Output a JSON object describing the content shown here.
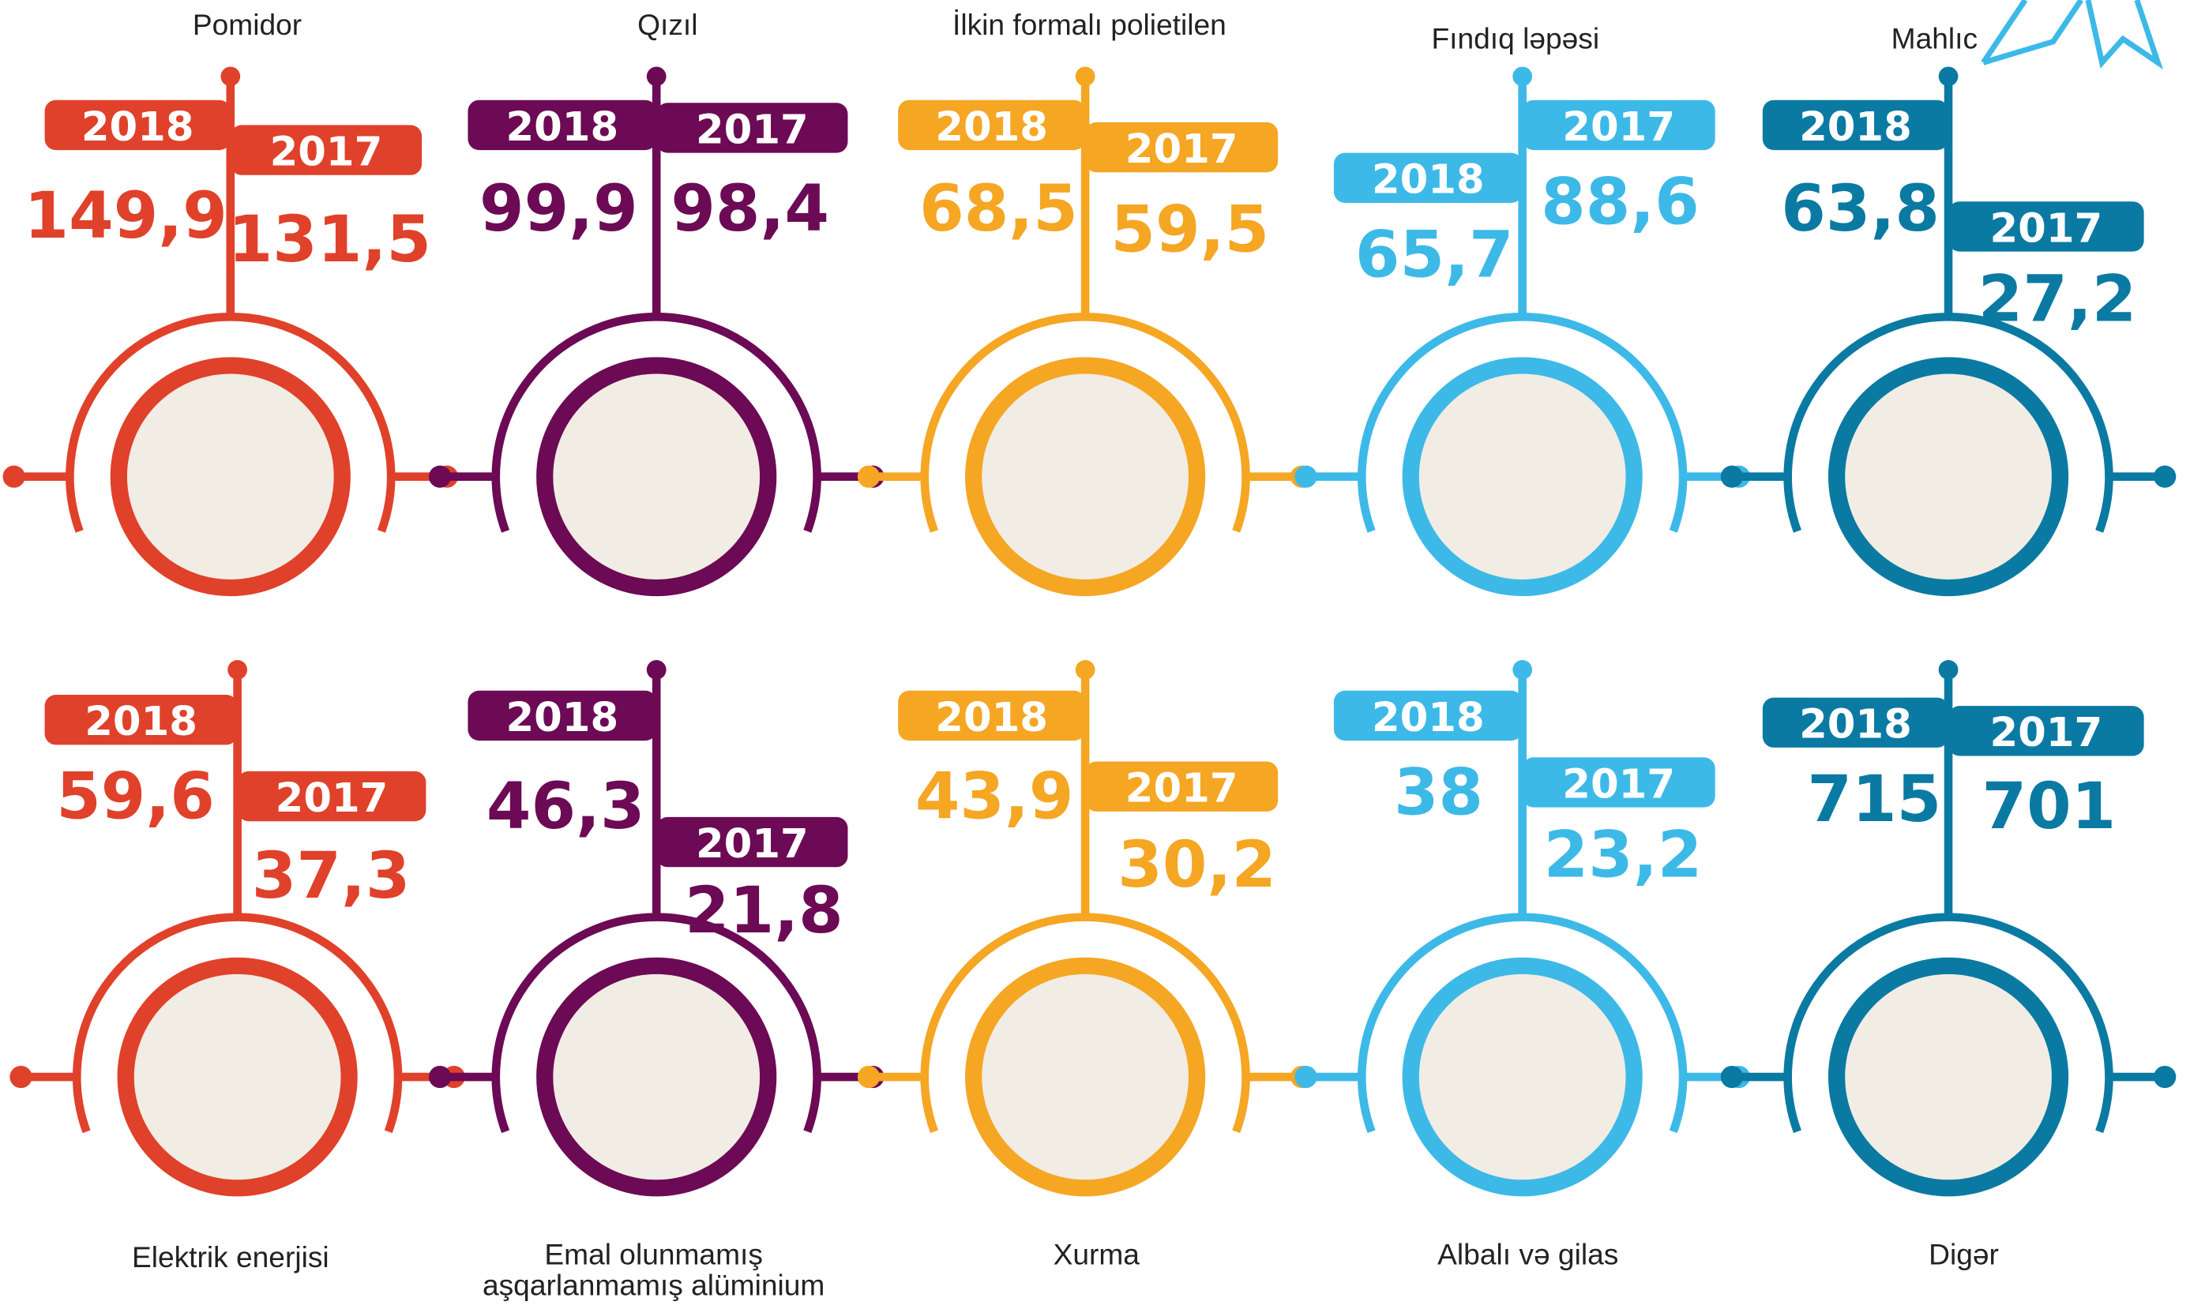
{
  "years": [
    "2018",
    "2017"
  ],
  "items": [
    {
      "name": [
        "Pomidor"
      ],
      "color": "#e0412a",
      "v2018": "149,9",
      "v2017": "131,5"
    },
    {
      "name": [
        "Qızıl"
      ],
      "color": "#6c0a55",
      "v2018": "99,9",
      "v2017": "98,4"
    },
    {
      "name": [
        "İlkin formalı polietilen"
      ],
      "color": "#f5a623",
      "v2018": "68,5",
      "v2017": "59,5"
    },
    {
      "name": [
        "Fındıq ləpəsi"
      ],
      "color": "#3db9e8",
      "v2018": "65,7",
      "v2017": "88,6"
    },
    {
      "name": [
        "Mahlıc"
      ],
      "color": "#0a7aa3",
      "v2018": "63,8",
      "v2017": "27,2"
    },
    {
      "name": [
        "Elektrik enerjisi"
      ],
      "color": "#e0412a",
      "v2018": "59,6",
      "v2017": "37,3"
    },
    {
      "name": [
        "Emal olunmamış",
        "aşqarlanmamış alüminium"
      ],
      "color": "#6c0a55",
      "v2018": "46,3",
      "v2017": "21,8"
    },
    {
      "name": [
        "Xurma"
      ],
      "color": "#f5a623",
      "v2018": "43,9",
      "v2017": "30,2"
    },
    {
      "name": [
        "Albalı və gilas"
      ],
      "color": "#3db9e8",
      "v2018": "38",
      "v2017": "23,2"
    },
    {
      "name": [
        "Digər"
      ],
      "color": "#0a7aa3",
      "v2018": "715",
      "v2017": "701"
    }
  ]
}
